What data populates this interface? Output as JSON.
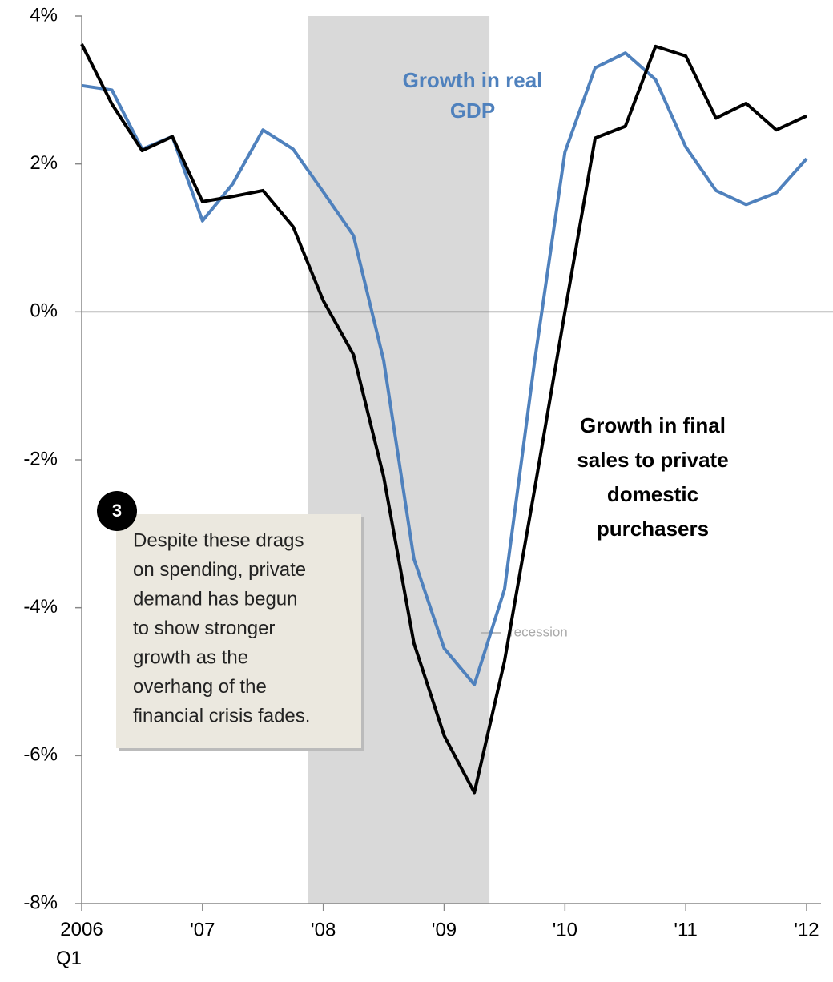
{
  "chart_data": {
    "type": "line",
    "x": [
      2006,
      2006.25,
      2006.5,
      2006.75,
      2007,
      2007.25,
      2007.5,
      2007.75,
      2008,
      2008.25,
      2008.5,
      2008.75,
      2009,
      2009.25,
      2009.5,
      2009.75,
      2010,
      2010.25,
      2010.5,
      2010.75,
      2011,
      2011.25,
      2011.5,
      2011.75,
      2012
    ],
    "series": [
      {
        "name": "Growth in final sales to private domestic purchasers",
        "color": "#000000",
        "values": [
          3.62,
          2.81,
          2.18,
          2.37,
          1.49,
          1.56,
          1.64,
          1.15,
          0.15,
          -0.58,
          -2.23,
          -4.48,
          -5.73,
          -6.5,
          -4.72,
          -2.39,
          0.0,
          2.35,
          2.51,
          3.59,
          3.46,
          2.62,
          2.82,
          2.46,
          2.65
        ]
      },
      {
        "name": "Growth in real GDP",
        "color": "#4f81bd",
        "values": [
          3.06,
          3.0,
          2.2,
          2.37,
          1.23,
          1.73,
          2.46,
          2.2,
          1.62,
          1.03,
          -0.66,
          -3.34,
          -4.55,
          -5.04,
          -3.75,
          -0.66,
          2.16,
          3.3,
          3.5,
          3.14,
          2.23,
          1.64,
          1.45,
          1.61,
          2.07
        ]
      }
    ],
    "xlim": [
      2006,
      2012
    ],
    "xticks": [
      {
        "value": 2006,
        "label": "2006 Q1"
      },
      {
        "value": 2007,
        "label": "'07"
      },
      {
        "value": 2008,
        "label": "'08"
      },
      {
        "value": 2009,
        "label": "'09"
      },
      {
        "value": 2010,
        "label": "'10"
      },
      {
        "value": 2011,
        "label": "'11"
      },
      {
        "value": 2012,
        "label": "'12"
      }
    ],
    "ylim": [
      -8,
      4
    ],
    "yticks": [
      {
        "value": 4,
        "label": "4%"
      },
      {
        "value": 2,
        "label": "2%"
      },
      {
        "value": 0,
        "label": "0%"
      },
      {
        "value": -2,
        "label": "-2%"
      },
      {
        "value": -4,
        "label": "-4%"
      },
      {
        "value": -6,
        "label": "-6%"
      },
      {
        "value": -8,
        "label": "-8%"
      }
    ],
    "recession": {
      "label": "recession",
      "range": [
        2007.875,
        2009.375
      ]
    },
    "callout": {
      "number": "3",
      "lines": [
        "Despite these drags",
        "on spending, private",
        "demand has begun",
        "to show stronger",
        "growth as the",
        "overhang of the",
        "financial crisis fades."
      ]
    }
  }
}
